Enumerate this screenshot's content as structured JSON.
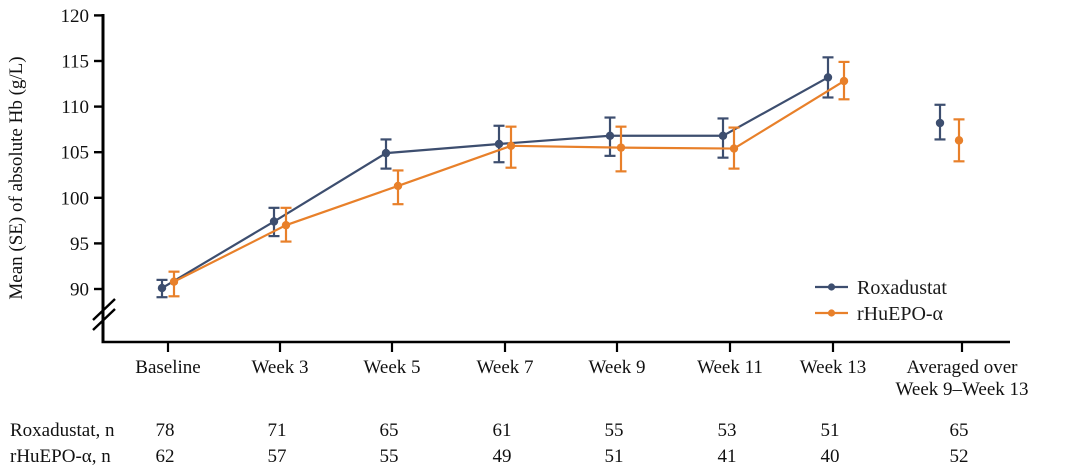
{
  "chart_data": {
    "type": "line",
    "title": "",
    "xlabel": "",
    "ylabel": "Mean (SE) of absolute Hb (g/L)",
    "ylim": [
      90,
      120
    ],
    "y_ticks": [
      90,
      95,
      100,
      105,
      110,
      115,
      120
    ],
    "axis_break_below_first_tick": true,
    "grid": false,
    "categories": [
      "Baseline",
      "Week 3",
      "Week 5",
      "Week 7",
      "Week 9",
      "Week 11",
      "Week 13",
      "Averaged over\nWeek 9–Week 13"
    ],
    "connected_point_count": 7,
    "legend": {
      "position": "inside-right",
      "entries": [
        "Roxadustat",
        "rHuEPO-α"
      ]
    },
    "series": [
      {
        "name": "Roxadustat",
        "color": "#3D4E6F",
        "marker": "circle",
        "mean": [
          90.1,
          97.4,
          104.9,
          105.9,
          106.8,
          106.8,
          113.2,
          108.2
        ],
        "upper": [
          91.0,
          98.9,
          106.4,
          107.9,
          108.8,
          108.7,
          115.4,
          110.2
        ],
        "lower": [
          89.1,
          95.8,
          103.2,
          103.9,
          104.6,
          104.4,
          111.0,
          106.4
        ]
      },
      {
        "name": "rHuEPO-α",
        "color": "#E8802A",
        "marker": "circle",
        "mean": [
          90.8,
          97.0,
          101.3,
          105.7,
          105.5,
          105.4,
          112.8,
          106.3
        ],
        "upper": [
          91.9,
          98.9,
          103.0,
          107.8,
          107.8,
          107.7,
          114.9,
          108.6
        ],
        "lower": [
          89.2,
          95.2,
          99.3,
          103.3,
          102.9,
          103.2,
          110.8,
          104.0
        ]
      }
    ]
  },
  "n_table": {
    "rows": [
      {
        "label": "Roxadustat, n",
        "values": [
          "78",
          "71",
          "65",
          "61",
          "55",
          "53",
          "51",
          "65"
        ]
      },
      {
        "label": "rHuEPO-α, n",
        "values": [
          "62",
          "57",
          "55",
          "49",
          "51",
          "41",
          "40",
          "52"
        ]
      }
    ]
  }
}
